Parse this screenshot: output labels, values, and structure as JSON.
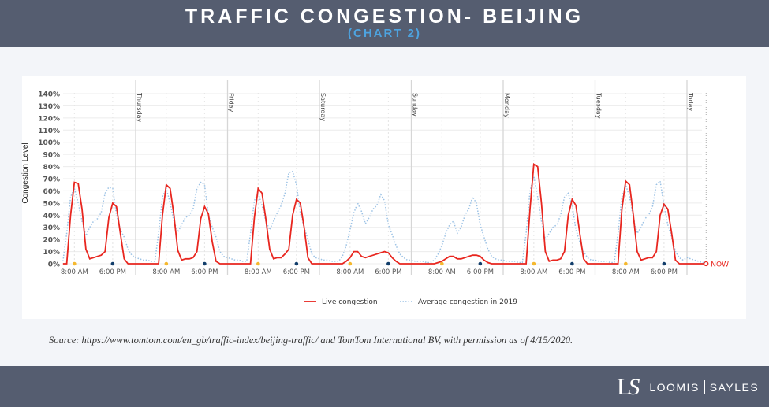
{
  "header": {
    "title": "TRAFFIC CONGESTION- BEIJING",
    "subtitle": "(CHART 2)"
  },
  "source": "Source: https://www.tomtom.com/en_gb/traffic-index/beijing-traffic/ and TomTom International BV, with permission as of 4/15/2020.",
  "footer": {
    "logo_left": "LOOMIS",
    "logo_right": "SAYLES",
    "logo_mark": "LS"
  },
  "chart_data": {
    "type": "line",
    "ylabel": "Congestion Level",
    "ylim": [
      0,
      140
    ],
    "yticks": [
      "0%",
      "10%",
      "20%",
      "30%",
      "40%",
      "50%",
      "60%",
      "70%",
      "80%",
      "90%",
      "100%",
      "110%",
      "120%",
      "130%",
      "140%"
    ],
    "grid": true,
    "legend_position": "bottom",
    "colors": {
      "live": "#e8261f",
      "average": "#9cc2e5",
      "morning_dot": "#f5b82e",
      "evening_dot": "#123e6b"
    },
    "x_tick_labels": [
      "8:00 AM",
      "6:00 PM"
    ],
    "day_labels": [
      "",
      "Thursday",
      "Friday",
      "Saturday",
      "Sunday",
      "Monday",
      "Tuesday",
      "Today"
    ],
    "now_label": "NOW",
    "now_hour": 5,
    "series": [
      {
        "name": "Live congestion",
        "days": [
          [
            null,
            null,
            null,
            null,
            null,
            0,
            0,
            40,
            67,
            66,
            45,
            12,
            4,
            5,
            6,
            7,
            10,
            38,
            50,
            47,
            25,
            4,
            0,
            0
          ],
          [
            0,
            0,
            0,
            0,
            0,
            0,
            0,
            40,
            65,
            62,
            40,
            11,
            3,
            4,
            4,
            5,
            10,
            37,
            47,
            41,
            18,
            2,
            0,
            0
          ],
          [
            0,
            0,
            0,
            0,
            0,
            0,
            0,
            38,
            62,
            58,
            37,
            12,
            4,
            5,
            5,
            8,
            12,
            40,
            53,
            50,
            30,
            5,
            0,
            0
          ],
          [
            0,
            0,
            0,
            0,
            0,
            0,
            0,
            2,
            5,
            10,
            10,
            6,
            5,
            6,
            7,
            8,
            9,
            10,
            9,
            5,
            2,
            0,
            0,
            0
          ],
          [
            0,
            0,
            0,
            0,
            0,
            0,
            0,
            1,
            2,
            4,
            6,
            6,
            4,
            4,
            5,
            6,
            7,
            7,
            6,
            3,
            1,
            0,
            0,
            0
          ],
          [
            0,
            0,
            0,
            0,
            0,
            0,
            0,
            45,
            82,
            80,
            50,
            10,
            2,
            3,
            3,
            4,
            10,
            40,
            53,
            48,
            25,
            4,
            0,
            0
          ],
          [
            0,
            0,
            0,
            0,
            0,
            0,
            0,
            45,
            68,
            65,
            40,
            10,
            3,
            4,
            5,
            5,
            10,
            40,
            49,
            45,
            25,
            3,
            0,
            0
          ],
          [
            0,
            0,
            0,
            0,
            0,
            0
          ]
        ]
      },
      {
        "name": "Average congestion in 2019",
        "days": [
          [
            null,
            null,
            null,
            null,
            null,
            2,
            25,
            55,
            62,
            50,
            35,
            23,
            30,
            35,
            37,
            42,
            58,
            63,
            62,
            40,
            28,
            22,
            12,
            7
          ],
          [
            5,
            4,
            3,
            3,
            2,
            2,
            25,
            55,
            62,
            50,
            35,
            26,
            32,
            38,
            40,
            45,
            62,
            67,
            65,
            40,
            30,
            22,
            10,
            6
          ],
          [
            5,
            4,
            3,
            3,
            2,
            2,
            25,
            52,
            58,
            48,
            35,
            28,
            35,
            42,
            48,
            58,
            75,
            76,
            65,
            42,
            30,
            20,
            8,
            5
          ],
          [
            4,
            3,
            3,
            2,
            2,
            2,
            6,
            15,
            28,
            42,
            50,
            43,
            33,
            38,
            45,
            48,
            57,
            52,
            32,
            24,
            15,
            8,
            5,
            3
          ],
          [
            3,
            2,
            2,
            2,
            1,
            1,
            3,
            8,
            15,
            25,
            32,
            35,
            25,
            30,
            40,
            45,
            55,
            50,
            32,
            22,
            12,
            6,
            4,
            3
          ],
          [
            3,
            2,
            2,
            2,
            1,
            1,
            25,
            60,
            72,
            55,
            35,
            20,
            25,
            30,
            32,
            40,
            55,
            58,
            48,
            28,
            18,
            10,
            5,
            3
          ],
          [
            3,
            2,
            2,
            2,
            1,
            1,
            25,
            55,
            65,
            55,
            38,
            25,
            30,
            37,
            40,
            47,
            65,
            68,
            48,
            32,
            22,
            10,
            5,
            3
          ],
          [
            5,
            4,
            3,
            2,
            1,
            1
          ]
        ]
      }
    ]
  }
}
